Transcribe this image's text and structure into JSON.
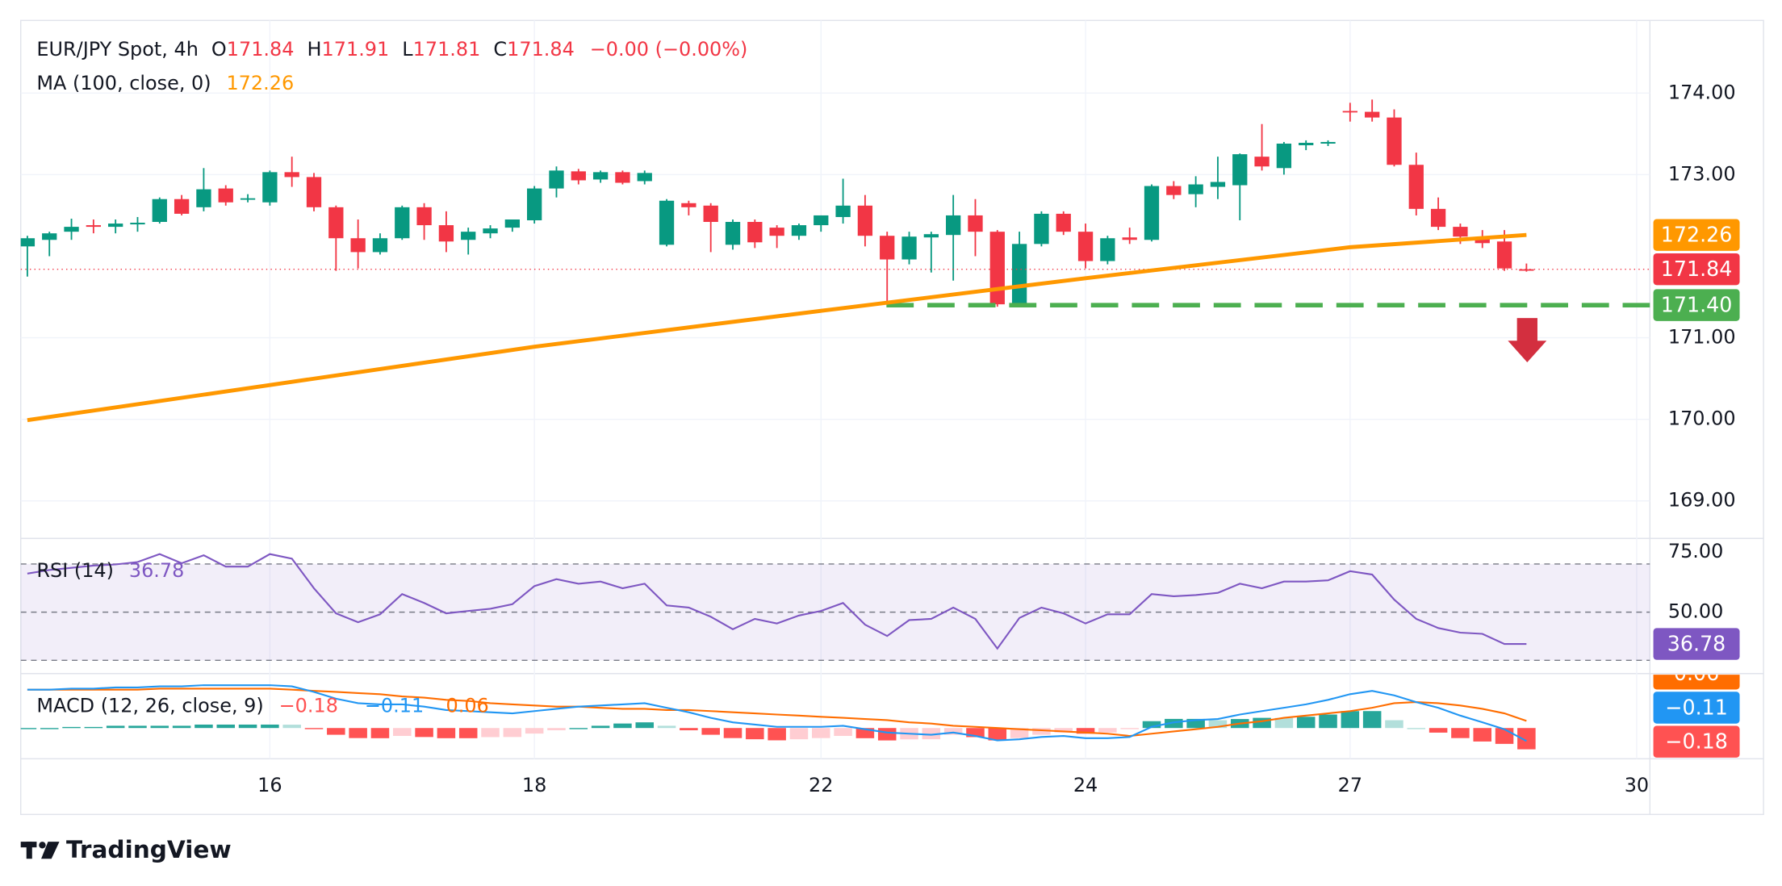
{
  "chart_data": [
    {
      "type": "candlestick",
      "title": "EUR/JPY Spot, 4h",
      "ohlc": [
        {
          "key": "O",
          "value": "171.84"
        },
        {
          "key": "H",
          "value": "171.91"
        },
        {
          "key": "L",
          "value": "171.81"
        },
        {
          "key": "C",
          "value": "171.84"
        }
      ],
      "change": "−0.00 (−0.00%)",
      "xlim": [
        -0.3,
        73.6
      ],
      "xticks": [
        {
          "value": 11,
          "label": "16"
        },
        {
          "value": 23,
          "label": "18"
        },
        {
          "value": 36,
          "label": "22"
        },
        {
          "value": 48,
          "label": "24"
        },
        {
          "value": 60,
          "label": "27"
        },
        {
          "value": 73,
          "label": "30"
        }
      ],
      "ylim": [
        168.54,
        174.89
      ],
      "yticks": [
        {
          "value": 169,
          "label": "169.00"
        },
        {
          "value": 170,
          "label": "170.00"
        },
        {
          "value": 171,
          "label": "171.00"
        },
        {
          "value": 173,
          "label": "173.00"
        },
        {
          "value": 174,
          "label": "174.00"
        }
      ],
      "grid": true,
      "up_color": "#089981",
      "down_color": "#f23645",
      "open": [
        172.12,
        172.2,
        172.3,
        172.38,
        172.36,
        172.39,
        172.42,
        172.7,
        172.6,
        172.83,
        172.7,
        172.66,
        173.03,
        172.97,
        172.6,
        172.22,
        172.05,
        172.22,
        172.6,
        172.38,
        172.2,
        172.28,
        172.35,
        172.44,
        172.83,
        173.04,
        172.94,
        173.03,
        172.92,
        172.14,
        172.65,
        172.62,
        172.14,
        172.42,
        172.35,
        172.25,
        172.38,
        172.48,
        172.62,
        172.25,
        171.96,
        172.23,
        172.26,
        172.5,
        172.3,
        171.42,
        172.15,
        172.52,
        172.3,
        171.94,
        172.23,
        172.2,
        172.86,
        172.76,
        172.85,
        172.87,
        173.22,
        173.08,
        173.36,
        173.38,
        173.78,
        173.77,
        173.7,
        173.12,
        172.58,
        172.36,
        172.23,
        172.18,
        171.84
      ],
      "high": [
        172.25,
        172.3,
        172.46,
        172.45,
        172.45,
        172.48,
        172.72,
        172.75,
        173.08,
        172.87,
        172.76,
        173.05,
        173.22,
        173.02,
        172.62,
        172.45,
        172.28,
        172.62,
        172.65,
        172.55,
        172.35,
        172.38,
        172.45,
        172.86,
        173.1,
        173.07,
        173.05,
        173.05,
        173.05,
        172.7,
        172.68,
        172.65,
        172.45,
        172.45,
        172.38,
        172.4,
        172.5,
        172.95,
        172.75,
        172.3,
        172.3,
        172.3,
        172.75,
        172.7,
        172.32,
        172.3,
        172.55,
        172.55,
        172.4,
        172.25,
        172.35,
        172.88,
        172.92,
        172.98,
        173.22,
        173.26,
        173.62,
        173.4,
        173.42,
        173.42,
        173.88,
        173.92,
        173.8,
        173.27,
        172.72,
        172.4,
        172.32,
        172.32,
        171.91
      ],
      "low": [
        171.75,
        172.0,
        172.2,
        172.28,
        172.28,
        172.3,
        172.4,
        172.5,
        172.55,
        172.62,
        172.66,
        172.62,
        172.85,
        172.55,
        171.82,
        171.85,
        172.02,
        172.2,
        172.2,
        172.05,
        172.02,
        172.22,
        172.3,
        172.4,
        172.72,
        172.88,
        172.9,
        172.88,
        172.88,
        172.12,
        172.5,
        172.05,
        172.08,
        172.1,
        172.1,
        172.2,
        172.3,
        172.4,
        172.12,
        171.4,
        171.9,
        171.8,
        171.7,
        172.0,
        171.38,
        171.4,
        172.12,
        172.26,
        171.85,
        171.9,
        172.15,
        172.18,
        172.7,
        172.6,
        172.7,
        172.44,
        173.05,
        173.0,
        173.3,
        173.35,
        173.65,
        173.65,
        173.1,
        172.5,
        172.32,
        172.15,
        172.1,
        171.82,
        171.81
      ],
      "close": [
        172.22,
        172.28,
        172.36,
        172.36,
        172.4,
        172.41,
        172.7,
        172.52,
        172.82,
        172.66,
        172.71,
        173.03,
        172.97,
        172.6,
        172.22,
        172.05,
        172.22,
        172.6,
        172.38,
        172.18,
        172.3,
        172.34,
        172.45,
        172.83,
        173.05,
        172.93,
        173.03,
        172.9,
        173.02,
        172.68,
        172.6,
        172.42,
        172.42,
        172.17,
        172.25,
        172.38,
        172.5,
        172.62,
        172.25,
        171.96,
        172.24,
        172.27,
        172.5,
        172.3,
        171.41,
        172.15,
        172.52,
        172.3,
        171.94,
        172.22,
        172.2,
        172.86,
        172.75,
        172.88,
        172.91,
        173.25,
        173.1,
        173.38,
        173.39,
        173.4,
        173.77,
        173.7,
        173.12,
        172.58,
        172.36,
        172.24,
        172.16,
        171.85,
        171.84
      ],
      "ma": {
        "name": "MA (100, close, 0)",
        "value_label": "172.26",
        "color": "#ff9800",
        "x": [
          0,
          11,
          23,
          36,
          48,
          60,
          68
        ],
        "values": [
          169.99,
          170.42,
          170.89,
          171.33,
          171.73,
          172.11,
          172.26
        ]
      },
      "price_labels": [
        {
          "value": 172.26,
          "label": "172.26",
          "color": "#ff9800"
        },
        {
          "value": 171.84,
          "label": "171.84",
          "color": "#f23645"
        },
        {
          "value": 171.4,
          "label": "171.40",
          "color": "#4caf50"
        }
      ]
    },
    {
      "type": "line",
      "name": "RSI (14)",
      "value_label": "36.78",
      "color": "#7e57c2",
      "ylim": [
        24.5,
        80.6
      ],
      "yticks": [
        {
          "value": 75,
          "label": "75.00"
        },
        {
          "value": 50,
          "label": "50.00"
        }
      ],
      "levels": [
        70,
        50,
        30
      ],
      "values": [
        66.0,
        67.5,
        68.4,
        69.3,
        69.8,
        70.8,
        74.1,
        70.3,
        73.6,
        68.9,
        68.9,
        74.1,
        72.2,
        59.9,
        49.5,
        45.8,
        49.1,
        57.5,
        53.8,
        49.5,
        50.5,
        51.4,
        53.3,
        60.8,
        63.7,
        61.8,
        62.7,
        59.9,
        61.8,
        52.8,
        51.9,
        48.1,
        42.9,
        47.2,
        45.3,
        48.6,
        50.5,
        53.8,
        44.8,
        40.1,
        46.7,
        47.2,
        51.9,
        47.2,
        34.9,
        47.6,
        51.9,
        49.5,
        45.3,
        49.1,
        49.1,
        57.5,
        56.6,
        57.1,
        58.0,
        61.8,
        59.9,
        62.7,
        62.7,
        63.2,
        67.0,
        65.6,
        55.2,
        47.2,
        43.4,
        41.5,
        41.0,
        36.8,
        36.78
      ]
    },
    {
      "type": "macd",
      "name": "MACD (12, 26, close, 9)",
      "ylim": [
        -0.26,
        0.46
      ],
      "histogram": {
        "value_label": "−0.18",
        "color": "#ff5252",
        "up_color": "#26a69a",
        "up_fading_color": "#b2dfdb",
        "down_color": "#ff5252",
        "down_fading_color": "#ffcdd2",
        "values": [
          0,
          0,
          0.009,
          0.009,
          0.019,
          0.019,
          0.019,
          0.019,
          0.029,
          0.029,
          0.029,
          0.029,
          0.028,
          -0.009,
          -0.057,
          -0.085,
          -0.086,
          -0.067,
          -0.076,
          -0.086,
          -0.086,
          -0.077,
          -0.076,
          -0.047,
          -0.019,
          0,
          0.019,
          0.038,
          0.048,
          0.019,
          -0.019,
          -0.057,
          -0.085,
          -0.095,
          -0.104,
          -0.095,
          -0.085,
          -0.067,
          -0.086,
          -0.105,
          -0.096,
          -0.095,
          -0.057,
          -0.077,
          -0.105,
          -0.085,
          -0.057,
          -0.038,
          -0.048,
          -0.038,
          -0.009,
          0.058,
          0.077,
          0.077,
          0.066,
          0.076,
          0.086,
          0.085,
          0.095,
          0.114,
          0.143,
          0.143,
          0.066,
          0,
          -0.039,
          -0.085,
          -0.114,
          -0.134,
          -0.18
        ]
      },
      "macd": {
        "value_label": "−0.11",
        "color": "#2196f3",
        "values": [
          0.324,
          0.324,
          0.333,
          0.333,
          0.343,
          0.343,
          0.352,
          0.352,
          0.362,
          0.362,
          0.362,
          0.362,
          0.352,
          0.305,
          0.248,
          0.21,
          0.2,
          0.2,
          0.181,
          0.152,
          0.143,
          0.133,
          0.124,
          0.143,
          0.162,
          0.181,
          0.19,
          0.2,
          0.21,
          0.171,
          0.133,
          0.086,
          0.048,
          0.029,
          0.01,
          0.01,
          0.01,
          0.019,
          -0.01,
          -0.038,
          -0.048,
          -0.057,
          -0.038,
          -0.067,
          -0.105,
          -0.095,
          -0.076,
          -0.067,
          -0.086,
          -0.086,
          -0.076,
          0.01,
          0.048,
          0.067,
          0.076,
          0.114,
          0.143,
          0.171,
          0.2,
          0.238,
          0.286,
          0.314,
          0.276,
          0.219,
          0.171,
          0.105,
          0.048,
          -0.01,
          -0.11
        ]
      },
      "signal": {
        "value_label": "0.06",
        "color": "#ff6d00",
        "values": [
          0.324,
          0.324,
          0.324,
          0.324,
          0.324,
          0.324,
          0.333,
          0.333,
          0.333,
          0.333,
          0.333,
          0.333,
          0.324,
          0.314,
          0.305,
          0.295,
          0.286,
          0.267,
          0.257,
          0.238,
          0.229,
          0.21,
          0.2,
          0.19,
          0.181,
          0.181,
          0.171,
          0.162,
          0.162,
          0.152,
          0.152,
          0.143,
          0.133,
          0.124,
          0.114,
          0.105,
          0.095,
          0.086,
          0.076,
          0.067,
          0.048,
          0.038,
          0.019,
          0.01,
          0,
          -0.01,
          -0.019,
          -0.029,
          -0.038,
          -0.048,
          -0.067,
          -0.048,
          -0.029,
          -0.01,
          0.01,
          0.038,
          0.057,
          0.086,
          0.105,
          0.124,
          0.143,
          0.171,
          0.21,
          0.219,
          0.21,
          0.19,
          0.162,
          0.124,
          0.06
        ]
      }
    }
  ],
  "footer": {
    "brand": "TradingView"
  }
}
